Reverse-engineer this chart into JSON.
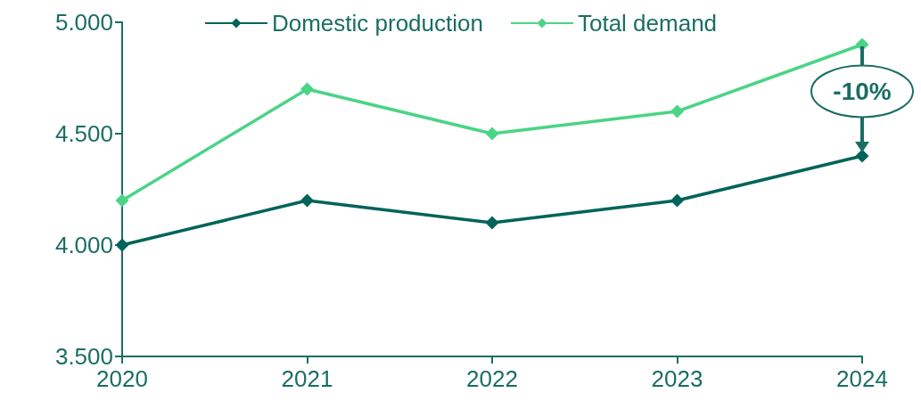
{
  "chart_data": {
    "type": "line",
    "categories": [
      "2020",
      "2021",
      "2022",
      "2023",
      "2024"
    ],
    "series": [
      {
        "name": "Domestic production",
        "color": "#00645a",
        "values": [
          4000,
          4200,
          4100,
          4200,
          4400
        ]
      },
      {
        "name": "Total demand",
        "color": "#4ad486",
        "values": [
          4200,
          4700,
          4500,
          4600,
          4900
        ]
      }
    ],
    "ylim": [
      3500,
      5000
    ],
    "yticks": [
      {
        "value": 3500,
        "label": "3.500"
      },
      {
        "value": 4000,
        "label": "4.000"
      },
      {
        "value": 4500,
        "label": "4.500"
      },
      {
        "value": 5000,
        "label": "5.000"
      }
    ],
    "annotations": [
      {
        "text": "-10%",
        "x": "2024",
        "y": 4400
      }
    ],
    "grid": false,
    "legend": "top",
    "marker": "diamond",
    "line_style": "solid"
  }
}
